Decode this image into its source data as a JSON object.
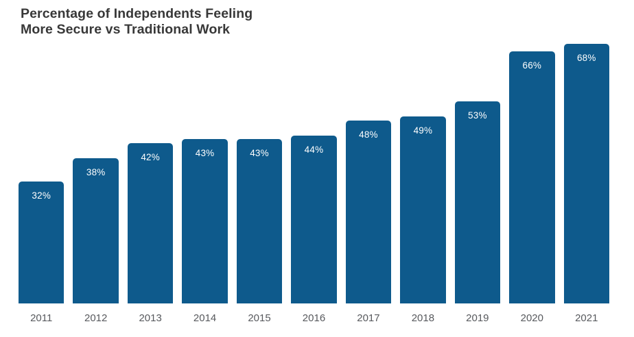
{
  "title": {
    "line1": "Percentage of Independents Feeling",
    "line2": "More Secure vs Traditional Work"
  },
  "colors": {
    "bar": "#0e5a8c",
    "value_label": "#ffffff",
    "axis_label": "#57595d",
    "title": "#383838",
    "background": "#ffffff"
  },
  "chart_data": {
    "type": "bar",
    "title": "Percentage of Independents Feeling More Secure vs Traditional Work",
    "categories": [
      "2011",
      "2012",
      "2013",
      "2014",
      "2015",
      "2016",
      "2017",
      "2018",
      "2019",
      "2020",
      "2021"
    ],
    "values": [
      32,
      38,
      42,
      43,
      43,
      44,
      48,
      49,
      53,
      66,
      68
    ],
    "value_labels": [
      "32%",
      "38%",
      "42%",
      "43%",
      "43%",
      "44%",
      "48%",
      "49%",
      "53%",
      "66%",
      "68%"
    ],
    "xlabel": "",
    "ylabel": "",
    "ylim": [
      0,
      70
    ],
    "grid": false,
    "legend": false,
    "value_labels_position": "inside-top",
    "bar_corner_radius_px": 5
  }
}
